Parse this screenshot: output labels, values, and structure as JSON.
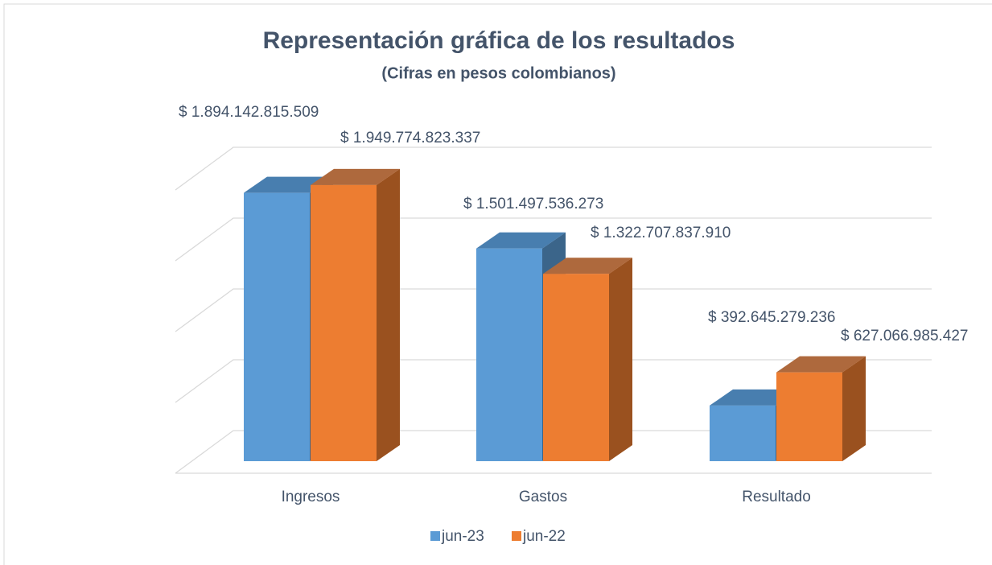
{
  "chart_data": {
    "type": "bar3d",
    "title": "Representación gráfica de los resultados",
    "subtitle": "(Cifras en pesos colombianos)",
    "categories": [
      "Ingresos",
      "Gastos",
      "Resultado"
    ],
    "series": [
      {
        "name": "jun-23",
        "color": "#5b9bd5",
        "values": [
          1894142815509,
          1501497536273,
          392645279236
        ],
        "value_labels": [
          "$ 1.894.142.815.509",
          "$ 1.501.497.536.273",
          "$ 392.645.279.236"
        ]
      },
      {
        "name": "jun-22",
        "color": "#ed7d31",
        "values": [
          1949774823337,
          1322707837910,
          627066985427
        ],
        "value_labels": [
          "$ 1.949.774.823.337",
          "$ 1.322.707.837.910",
          "$ 627.066.985.427"
        ]
      }
    ],
    "ylim": [
      0,
      2000000000000
    ],
    "yticks": [
      0,
      500000000000,
      1000000000000,
      1500000000000,
      2000000000000
    ],
    "grid": true,
    "legend": "bottom"
  }
}
